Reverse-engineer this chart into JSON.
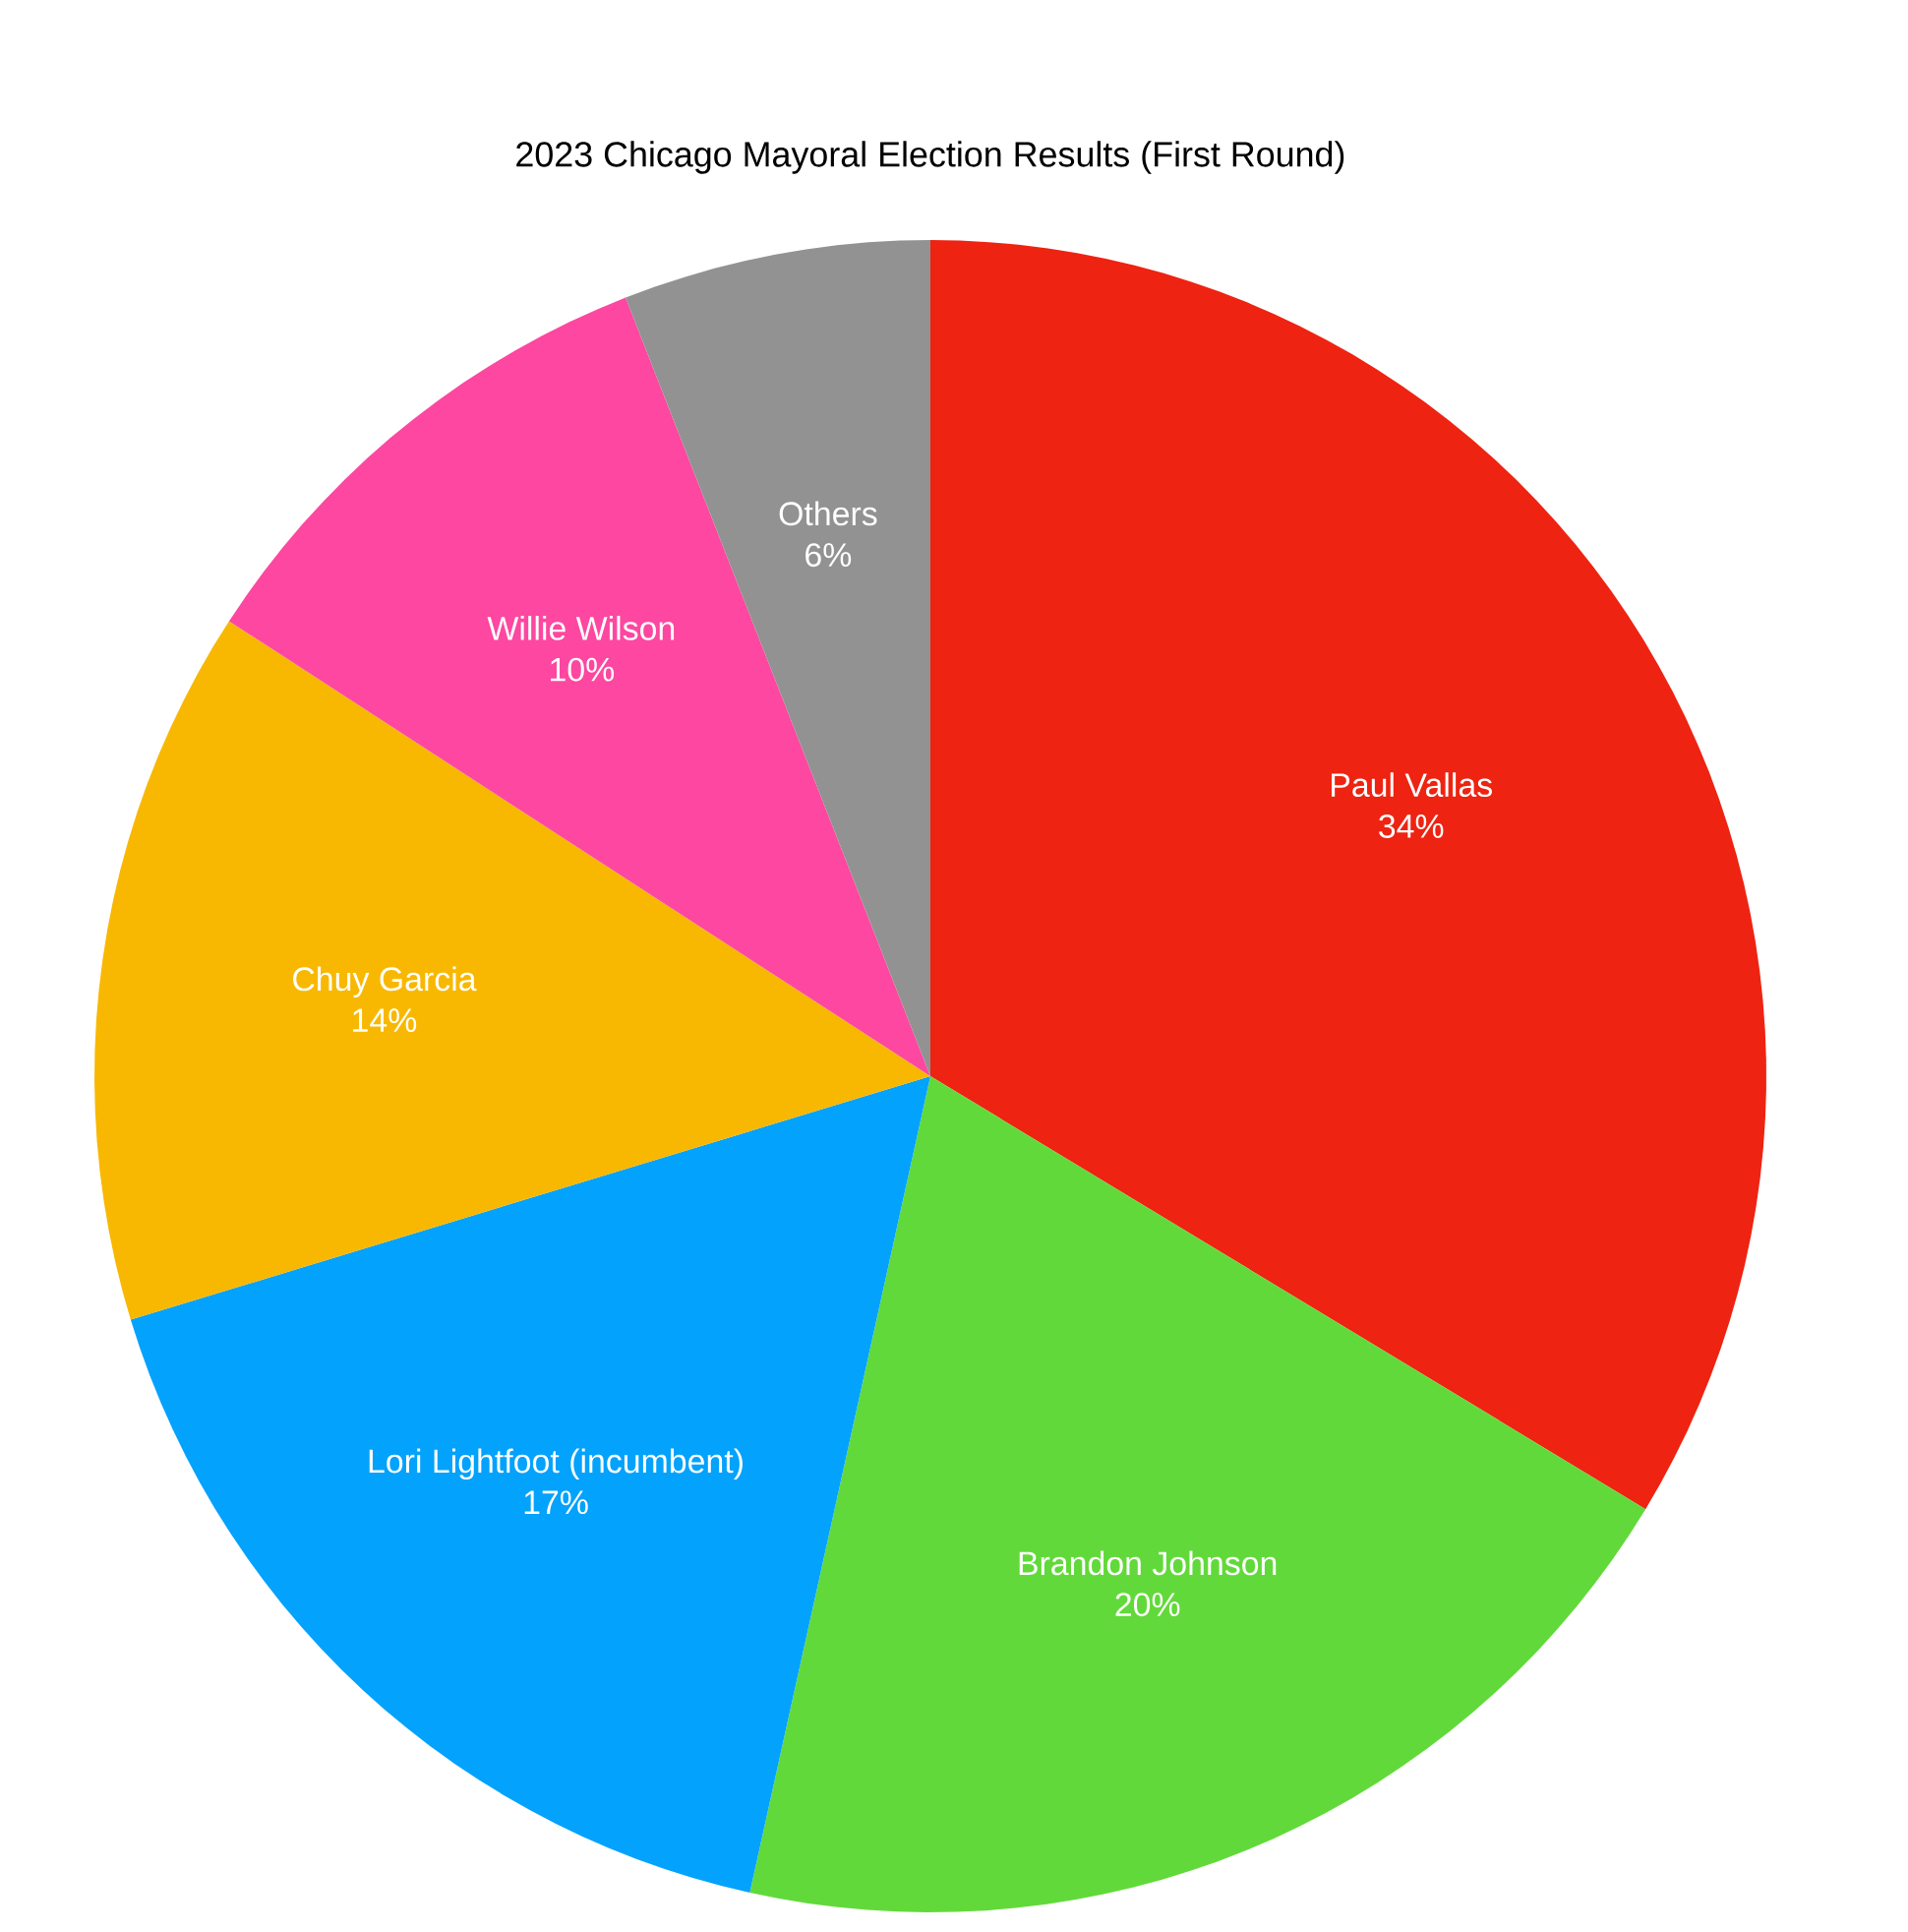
{
  "chart_data": {
    "type": "pie",
    "title": "2023 Chicago Mayoral Election Results (First Round)",
    "categories": [
      "Paul Vallas",
      "Brandon Johnson",
      "Lori Lightfoot (incumbent)",
      "Chuy Garcia",
      "Willie Wilson",
      "Others"
    ],
    "values": [
      34,
      20,
      17,
      14,
      10,
      6
    ],
    "value_labels": [
      "34%",
      "20%",
      "17%",
      "14%",
      "10%",
      "6%"
    ],
    "colors": [
      "#ee2311",
      "#62d93a",
      "#03a2fd",
      "#f8b801",
      "#fd47a0",
      "#929292"
    ]
  }
}
